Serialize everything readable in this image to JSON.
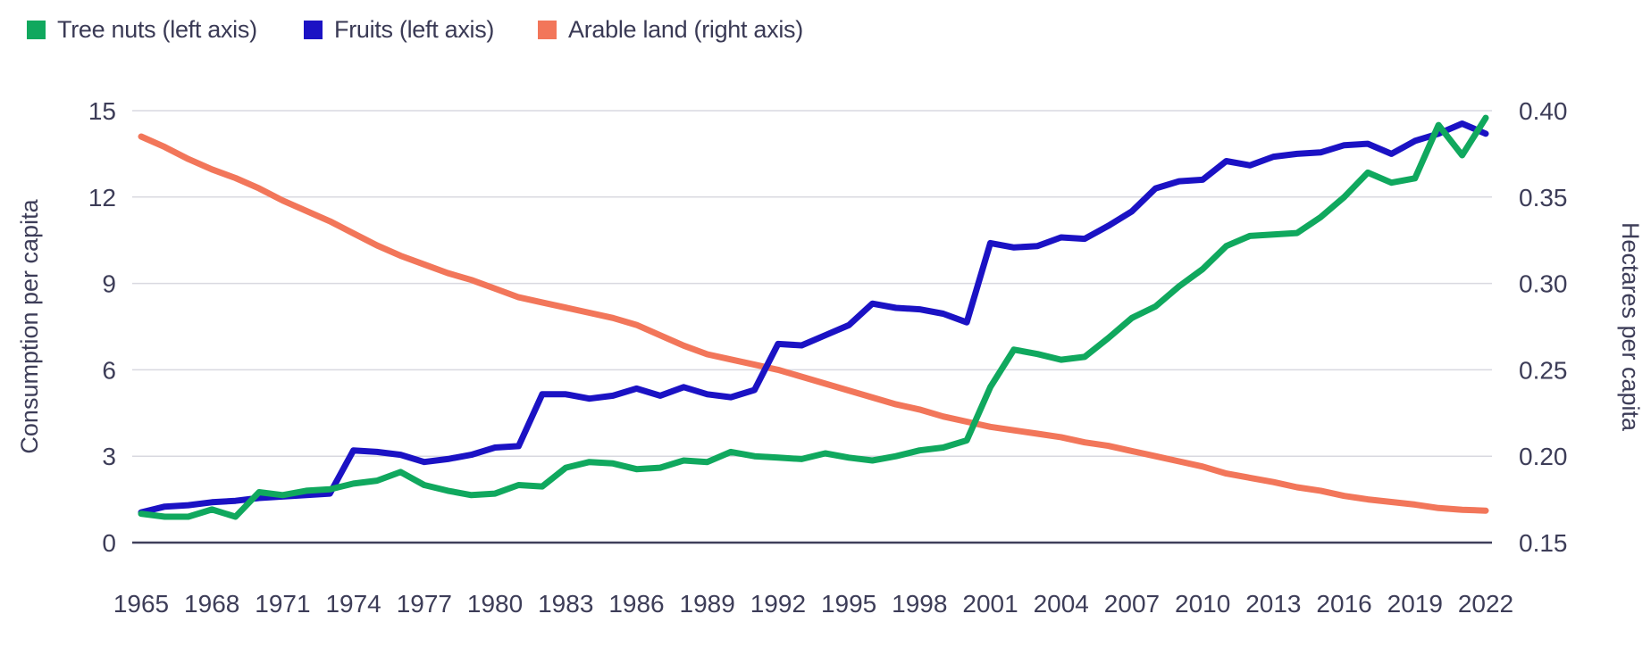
{
  "legend": {
    "items": [
      {
        "label": "Tree nuts (left axis)",
        "color": "#10a85e"
      },
      {
        "label": "Fruits (left axis)",
        "color": "#1b12c4"
      },
      {
        "label": "Arable land (right axis)",
        "color": "#f2765a"
      }
    ]
  },
  "chart_data": {
    "type": "line",
    "x": [
      1965,
      1966,
      1967,
      1968,
      1969,
      1970,
      1971,
      1972,
      1973,
      1974,
      1975,
      1976,
      1977,
      1978,
      1979,
      1980,
      1981,
      1982,
      1983,
      1984,
      1985,
      1986,
      1987,
      1988,
      1989,
      1990,
      1991,
      1992,
      1993,
      1994,
      1995,
      1996,
      1997,
      1998,
      1999,
      2000,
      2001,
      2002,
      2003,
      2004,
      2005,
      2006,
      2007,
      2008,
      2009,
      2010,
      2011,
      2012,
      2013,
      2014,
      2015,
      2016,
      2017,
      2018,
      2019,
      2020,
      2021,
      2022
    ],
    "x_tick_labels": [
      "1965",
      "1968",
      "1971",
      "1974",
      "1977",
      "1980",
      "1983",
      "1986",
      "1989",
      "1992",
      "1995",
      "1998",
      "2001",
      "2004",
      "2007",
      "2010",
      "2013",
      "2016",
      "2019",
      "2022"
    ],
    "axes": {
      "left": {
        "label": "Consumption per capita",
        "range": [
          0,
          15
        ],
        "ticks": [
          "0",
          "3",
          "6",
          "9",
          "12",
          "15"
        ],
        "tick_values": [
          0,
          3,
          6,
          9,
          12,
          15
        ]
      },
      "right": {
        "label": "Hectares per capita",
        "range": [
          0.15,
          0.4
        ],
        "ticks": [
          "0.15",
          "0.20",
          "0.25",
          "0.30",
          "0.35",
          "0.40"
        ],
        "tick_values": [
          0.15,
          0.2,
          0.25,
          0.3,
          0.35,
          0.4
        ]
      }
    },
    "grid": true,
    "legend_position": "top-left",
    "colors": {
      "gridline": "#d9d9e0",
      "axis_line": "#3f3f5a",
      "text": "#3d3d58"
    },
    "series": [
      {
        "name": "Tree nuts",
        "axis": "left",
        "color": "#10a85e",
        "values": [
          1.0,
          0.9,
          0.9,
          1.15,
          0.9,
          1.75,
          1.65,
          1.8,
          1.85,
          2.05,
          2.15,
          2.45,
          2.0,
          1.8,
          1.65,
          1.7,
          2.0,
          1.95,
          2.6,
          2.8,
          2.75,
          2.55,
          2.6,
          2.85,
          2.8,
          3.15,
          3.0,
          2.95,
          2.9,
          3.1,
          2.95,
          2.85,
          3.0,
          3.2,
          3.3,
          3.55,
          5.4,
          6.7,
          6.55,
          6.35,
          6.45,
          7.1,
          7.8,
          8.2,
          8.9,
          9.5,
          10.3,
          10.65,
          10.7,
          10.75,
          11.3,
          12.0,
          12.85,
          12.5,
          12.65,
          14.5,
          13.45,
          14.75
        ]
      },
      {
        "name": "Fruits",
        "axis": "left",
        "color": "#1b12c4",
        "values": [
          1.05,
          1.25,
          1.3,
          1.4,
          1.45,
          1.55,
          1.6,
          1.65,
          1.7,
          3.2,
          3.15,
          3.05,
          2.8,
          2.9,
          3.05,
          3.3,
          3.35,
          5.15,
          5.15,
          5.0,
          5.1,
          5.35,
          5.1,
          5.4,
          5.15,
          5.05,
          5.3,
          6.9,
          6.85,
          7.2,
          7.55,
          8.3,
          8.15,
          8.1,
          7.95,
          7.65,
          10.4,
          10.25,
          10.3,
          10.6,
          10.55,
          11.0,
          11.5,
          12.3,
          12.55,
          12.6,
          13.25,
          13.1,
          13.4,
          13.5,
          13.55,
          13.8,
          13.85,
          13.5,
          13.95,
          14.2,
          14.55,
          14.2
        ]
      },
      {
        "name": "Arable land",
        "axis": "right",
        "color": "#f2765a",
        "values": [
          0.385,
          0.379,
          0.372,
          0.366,
          0.361,
          0.355,
          0.348,
          0.342,
          0.336,
          0.329,
          0.322,
          0.316,
          0.311,
          0.306,
          0.302,
          0.297,
          0.292,
          0.289,
          0.286,
          0.283,
          0.28,
          0.276,
          0.27,
          0.264,
          0.259,
          0.256,
          0.253,
          0.25,
          0.246,
          0.242,
          0.238,
          0.234,
          0.23,
          0.227,
          0.223,
          0.22,
          0.217,
          0.215,
          0.213,
          0.211,
          0.208,
          0.206,
          0.203,
          0.2,
          0.197,
          0.194,
          0.19,
          0.1875,
          0.185,
          0.182,
          0.18,
          0.177,
          0.175,
          0.1735,
          0.172,
          0.17,
          0.169,
          0.1685
        ]
      }
    ]
  }
}
